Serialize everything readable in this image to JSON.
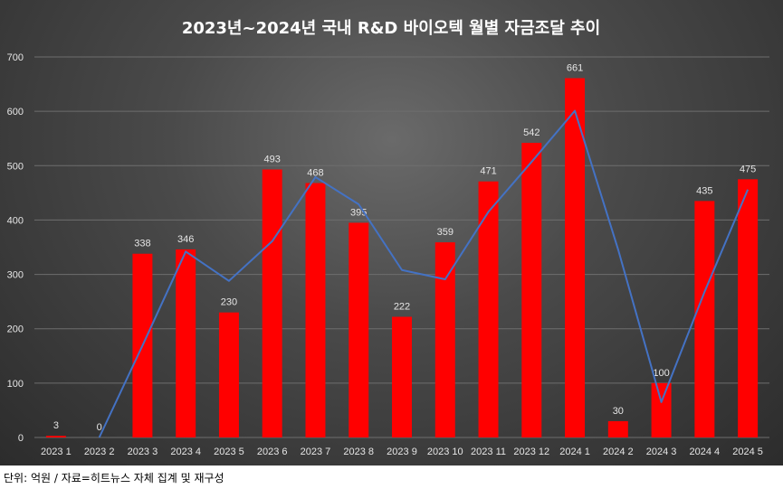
{
  "chart_data": {
    "type": "bar",
    "title": "2023년~2024년 국내 R&D 바이오텍 월별 자금조달 추이",
    "categories": [
      "2023 1",
      "2023 2",
      "2023 3",
      "2023 4",
      "2023 5",
      "2023 6",
      "2023 7",
      "2023 8",
      "2023 9",
      "2023 10",
      "2023 11",
      "2023 12",
      "2024 1",
      "2024 2",
      "2024 3",
      "2024 4",
      "2024 5"
    ],
    "series": [
      {
        "values": [
          3,
          0,
          338,
          346,
          230,
          493,
          468,
          395,
          222,
          359,
          471,
          542,
          661,
          30,
          100,
          435,
          475
        ]
      }
    ],
    "trendline": [
      null,
      0,
      169,
      342,
      288,
      361,
      479,
      429,
      308,
      291,
      415,
      507,
      601,
      346,
      65,
      268,
      456
    ],
    "ylim": [
      0,
      700
    ],
    "yticks": [
      0,
      100,
      200,
      300,
      400,
      500,
      600,
      700
    ],
    "grid": true,
    "legend": "none",
    "colors": {
      "bar": "#ff0000",
      "line": "#4472c4",
      "grid": "#6e6e6e"
    }
  },
  "footnote": "단위: 억원 / 자료=히트뉴스 자체 집계 및 재구성"
}
